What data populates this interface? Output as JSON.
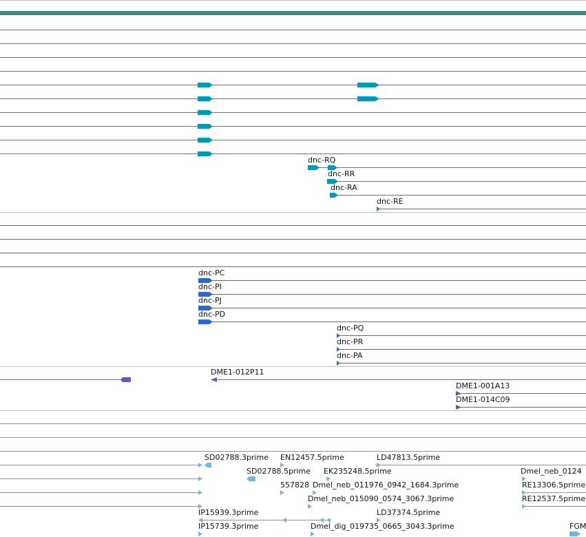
{
  "colors": {
    "transcript": "#0099b8",
    "transcript_line": "#1f8fa8",
    "protein": "#2e6acc",
    "protein_line": "#3572b0",
    "clone": "#6e55a8",
    "est": "#7ab4dc",
    "est_line": "#5aa0c8",
    "header_bar": "#3a8a8a",
    "teal_line": "#5aa8a8",
    "separator": "#c0c0c0"
  },
  "transcript_labels": [
    "dnc-RQ",
    "dnc-RR",
    "dnc-RA",
    "dnc-RE"
  ],
  "protein_labels": [
    "dnc-PC",
    "dnc-PI",
    "dnc-PJ",
    "dnc-PD",
    "dnc-PQ",
    "dnc-PR",
    "dnc-PA"
  ],
  "clone_labels": [
    "DME1-012P11",
    "DME1-001A13",
    "DME1-014C09"
  ],
  "est_labels": [
    "SD02788.3prime",
    "EN12457.5prime",
    "LD47813.5prime",
    "SD02788.5prime",
    "EK235248.5prime",
    "Dmel_neb_0124",
    "557828",
    "Dmel_neb_011976_0942_1684.3prime",
    "RE13306.5prime",
    "Dmel_neb_015090_0574_3067.3prime",
    "RE12537.5prime",
    "IP15939.3prime",
    "LD37374.5prime",
    "IP15739.3prime",
    "Dmel_dig_019735_0665_3043.3prime",
    "FGM"
  ]
}
